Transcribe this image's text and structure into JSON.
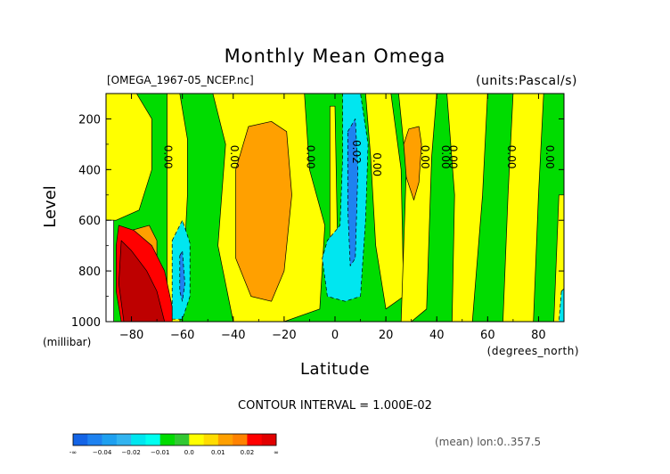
{
  "chart_data": {
    "type": "contour",
    "title": "Monthly Mean Omega",
    "file_label": "[OMEGA_1967-05_NCEP.nc]",
    "units_label": "(units:Pascal/s)",
    "xlabel": "Latitude",
    "x_units": "(degrees_north)",
    "ylabel": "Level",
    "y_units": "(millibar)",
    "xlim": [
      -90,
      90
    ],
    "ylim": [
      1000,
      100
    ],
    "x_ticks": [
      -80,
      -60,
      -40,
      -20,
      0,
      20,
      40,
      60,
      80
    ],
    "x_tick_labels": [
      "−80",
      "−60",
      "−40",
      "−20",
      "0",
      "20",
      "40",
      "60",
      "80"
    ],
    "y_ticks": [
      200,
      400,
      600,
      800,
      1000
    ],
    "y_tick_labels": [
      "200",
      "400",
      "600",
      "800",
      "1000"
    ],
    "contour_interval_text": "CONTOUR INTERVAL = 1.000E-02",
    "footer_note": "(mean) lon:0..357.5",
    "contour_labels": [
      {
        "text": "0.00",
        "lat": -67,
        "level": 350
      },
      {
        "text": "0.00",
        "lat": -41,
        "level": 350
      },
      {
        "text": "0.00",
        "lat": -11,
        "level": 350
      },
      {
        "text": "0.02",
        "lat": 7,
        "level": 330
      },
      {
        "text": "0.00",
        "lat": 15,
        "level": 380
      },
      {
        "text": "0.00",
        "lat": 34,
        "level": 350
      },
      {
        "text": "0.00",
        "lat": 42,
        "level": 350
      },
      {
        "text": "0.00",
        "lat": 45,
        "level": 350
      },
      {
        "text": "0.00",
        "lat": 68,
        "level": 350
      },
      {
        "text": "0.00",
        "lat": 83,
        "level": 350
      }
    ],
    "regions": [
      {
        "name": "band-yellow-west",
        "class": "0.0",
        "points": [
          [
            -90,
            100
          ],
          [
            -78,
            100
          ],
          [
            -72,
            200
          ],
          [
            -72,
            400
          ],
          [
            -77,
            560
          ],
          [
            -86,
            600
          ],
          [
            -90,
            600
          ]
        ]
      },
      {
        "name": "band-yellow-southmid",
        "class": "0.0",
        "points": [
          [
            -66,
            100
          ],
          [
            -61,
            100
          ],
          [
            -58,
            280
          ],
          [
            -58,
            500
          ],
          [
            -59,
            700
          ],
          [
            -61,
            1000
          ],
          [
            -66,
            1000
          ]
        ]
      },
      {
        "name": "band-yellow-subtropic",
        "class": "0.0",
        "points": [
          [
            -48,
            100
          ],
          [
            -12,
            100
          ],
          [
            -10,
            400
          ],
          [
            -4,
            620
          ],
          [
            -6,
            950
          ],
          [
            -20,
            1000
          ],
          [
            -40,
            1000
          ],
          [
            -46,
            700
          ],
          [
            -43,
            300
          ]
        ]
      },
      {
        "name": "band-yellow-eq-s",
        "class": "0.0",
        "points": [
          [
            -2,
            150
          ],
          [
            0,
            150
          ],
          [
            1,
            700
          ],
          [
            -2,
            720
          ]
        ]
      },
      {
        "name": "band-yellow-eq-n",
        "class": "0.0",
        "points": [
          [
            12,
            100
          ],
          [
            22,
            100
          ],
          [
            26,
            400
          ],
          [
            27,
            900
          ],
          [
            20,
            950
          ],
          [
            16,
            700
          ],
          [
            14,
            350
          ]
        ]
      },
      {
        "name": "band-yellow-north",
        "class": "0.0",
        "points": [
          [
            25,
            100
          ],
          [
            40,
            100
          ],
          [
            38,
            350
          ],
          [
            36,
            950
          ],
          [
            30,
            1000
          ],
          [
            26,
            1000
          ],
          [
            28,
            400
          ]
        ]
      },
      {
        "name": "band-yellow-north2",
        "class": "0.0",
        "points": [
          [
            44,
            100
          ],
          [
            60,
            100
          ],
          [
            58,
            500
          ],
          [
            54,
            1000
          ],
          [
            46,
            1000
          ],
          [
            47,
            500
          ]
        ]
      },
      {
        "name": "band-yellow-polar",
        "class": "0.0",
        "points": [
          [
            70,
            100
          ],
          [
            82,
            100
          ],
          [
            80,
            500
          ],
          [
            78,
            1000
          ],
          [
            66,
            1000
          ],
          [
            68,
            500
          ]
        ]
      },
      {
        "name": "band-yellow-pole",
        "class": "0.0",
        "points": [
          [
            88,
            500
          ],
          [
            90,
            500
          ],
          [
            90,
            1000
          ],
          [
            86,
            1000
          ]
        ]
      },
      {
        "name": "blob-orange-subtropic",
        "class": "0.01",
        "points": [
          [
            -34,
            230
          ],
          [
            -25,
            210
          ],
          [
            -19,
            250
          ],
          [
            -17,
            500
          ],
          [
            -20,
            800
          ],
          [
            -25,
            920
          ],
          [
            -33,
            900
          ],
          [
            -39,
            750
          ],
          [
            -39,
            400
          ]
        ]
      },
      {
        "name": "blob-orange-nh",
        "class": "0.01",
        "points": [
          [
            29,
            240
          ],
          [
            33,
            230
          ],
          [
            34,
            300
          ],
          [
            33,
            450
          ],
          [
            31,
            520
          ],
          [
            28,
            430
          ],
          [
            27,
            300
          ]
        ]
      },
      {
        "name": "blob-orange-sw",
        "class": "0.01",
        "points": [
          [
            -80,
            640
          ],
          [
            -73,
            620
          ],
          [
            -70,
            680
          ],
          [
            -70,
            760
          ],
          [
            -76,
            740
          ]
        ]
      },
      {
        "name": "blob-cyan-eq",
        "class": "-0.01",
        "points": [
          [
            3,
            100
          ],
          [
            10,
            100
          ],
          [
            13,
            300
          ],
          [
            12,
            600
          ],
          [
            10,
            900
          ],
          [
            4,
            920
          ],
          [
            -3,
            900
          ],
          [
            -5,
            750
          ],
          [
            -3,
            680
          ],
          [
            2,
            620
          ],
          [
            3,
            350
          ]
        ]
      },
      {
        "name": "blob-cyan-south",
        "class": "-0.01",
        "points": [
          [
            -64,
            680
          ],
          [
            -60,
            600
          ],
          [
            -57,
            690
          ],
          [
            -57,
            900
          ],
          [
            -60,
            990
          ],
          [
            -64,
            990
          ]
        ]
      },
      {
        "name": "blob-cyan-pole",
        "class": "-0.01",
        "points": [
          [
            89,
            880
          ],
          [
            90,
            870
          ],
          [
            90,
            1000
          ],
          [
            88,
            1000
          ]
        ]
      },
      {
        "name": "blob-blue-eq",
        "class": "-0.02",
        "points": [
          [
            5,
            250
          ],
          [
            8,
            200
          ],
          [
            9,
            400
          ],
          [
            8,
            750
          ],
          [
            6,
            780
          ],
          [
            5,
            550
          ]
        ]
      },
      {
        "name": "blob-blue-south",
        "class": "-0.02",
        "points": [
          [
            -61,
            740
          ],
          [
            -60,
            720
          ],
          [
            -59,
            850
          ],
          [
            -60,
            920
          ],
          [
            -61,
            880
          ]
        ]
      },
      {
        "name": "blob-red-sw",
        "class": "0.02",
        "points": [
          [
            -85,
            620
          ],
          [
            -79,
            640
          ],
          [
            -72,
            700
          ],
          [
            -67,
            800
          ],
          [
            -64,
            940
          ],
          [
            -64,
            1000
          ],
          [
            -84,
            1000
          ],
          [
            -86,
            880
          ],
          [
            -86,
            700
          ]
        ]
      },
      {
        "name": "blob-darkred-sw",
        "class": "0.03",
        "points": [
          [
            -84,
            680
          ],
          [
            -80,
            720
          ],
          [
            -74,
            800
          ],
          [
            -70,
            880
          ],
          [
            -67,
            1000
          ],
          [
            -83,
            1000
          ],
          [
            -85,
            850
          ]
        ]
      },
      {
        "name": "mask-missing-sw",
        "class": "missing",
        "points": [
          [
            -90,
            600
          ],
          [
            -87,
            600
          ],
          [
            -87,
            1000
          ],
          [
            -90,
            1000
          ]
        ]
      }
    ],
    "colorbar": {
      "classes": [
        "-0.05",
        "-0.04",
        "-0.03",
        "-0.02",
        "-0.015",
        "-0.01",
        "-0.005",
        "0.0",
        "0.005",
        "0.01",
        "0.015",
        "0.02",
        "0.025",
        "0.03"
      ],
      "colors": [
        "#1464e6",
        "#1e82f0",
        "#1ea0f0",
        "#32b4f0",
        "#00e6f0",
        "#00fff0",
        "#00dc00",
        "#32c832",
        "#ffff00",
        "#ffdc00",
        "#ffa000",
        "#ff8200",
        "#ff0000",
        "#e10000"
      ],
      "tick_labels": [
        "-∞",
        "−0.04",
        "−0.02",
        "−0.01",
        "0.0",
        "0.01",
        "0.02",
        "∞"
      ]
    },
    "class_colors": {
      "-0.02": "#1e82f0",
      "-0.01": "#00e6f0",
      "0.0": "#ffff00",
      "0.01": "#ffa000",
      "0.02": "#ff0000",
      "0.03": "#be0000",
      "background": "#00dc00",
      "missing": "#ffffff"
    }
  }
}
